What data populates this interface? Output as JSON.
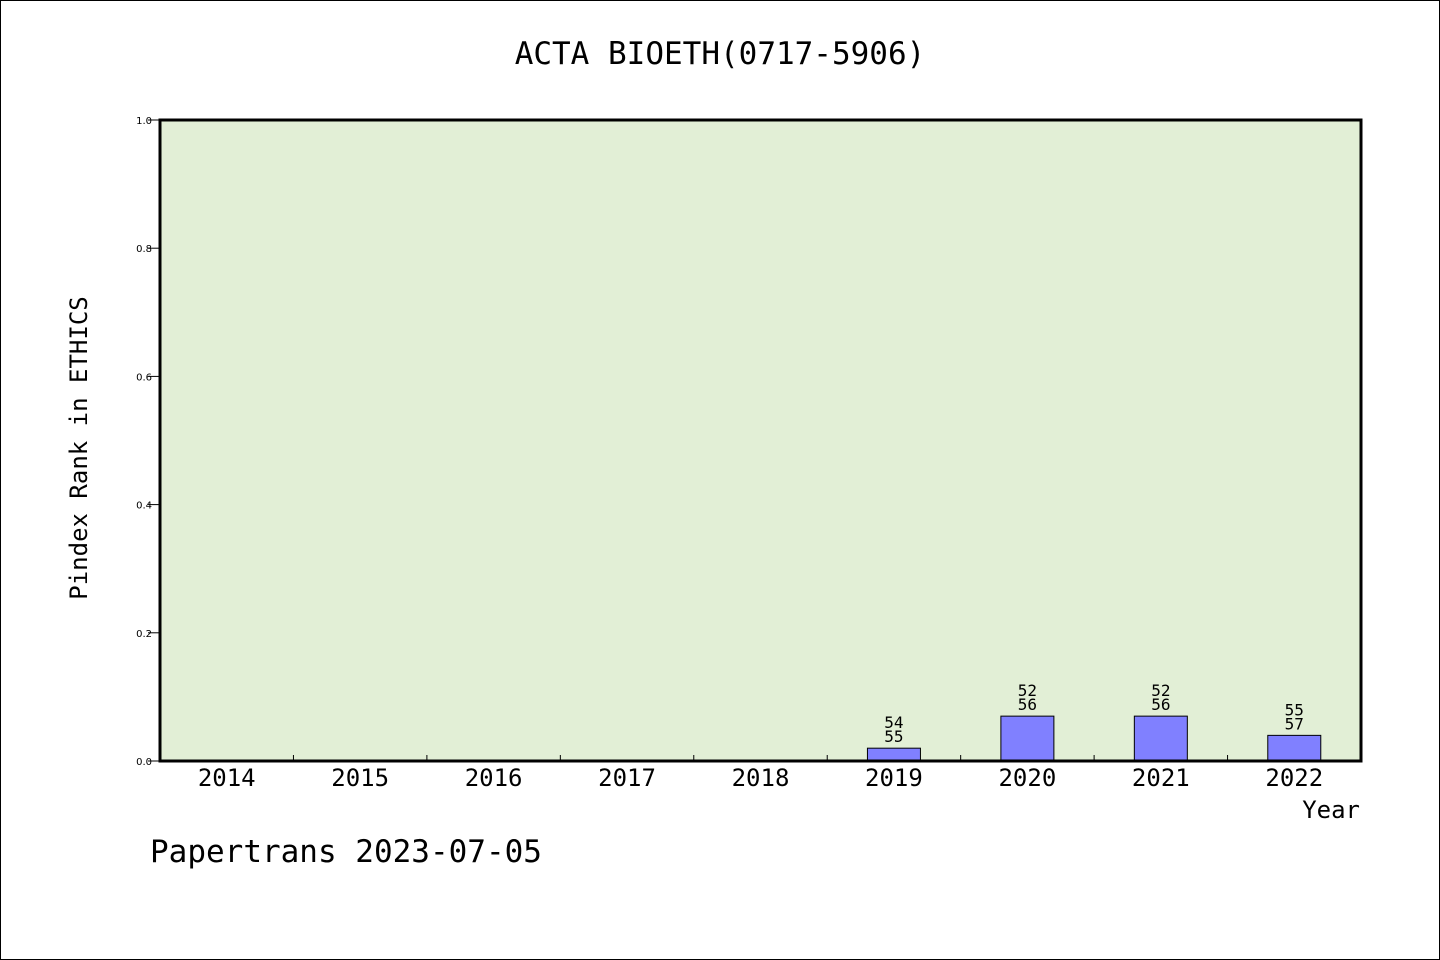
{
  "chart_data": {
    "type": "bar",
    "title": "ACTA BIOETH(0717-5906)",
    "xlabel": "Year",
    "ylabel": "Pindex Rank in ETHICS",
    "categories": [
      "2014",
      "2015",
      "2016",
      "2017",
      "2018",
      "2019",
      "2020",
      "2021",
      "2022"
    ],
    "values": [
      null,
      null,
      null,
      null,
      null,
      0.02,
      0.07,
      0.07,
      0.04
    ],
    "bar_labels": [
      [
        "",
        ""
      ],
      [
        "",
        ""
      ],
      [
        "",
        ""
      ],
      [
        "",
        ""
      ],
      [
        "",
        ""
      ],
      [
        "54",
        "55"
      ],
      [
        "52",
        "56"
      ],
      [
        "52",
        "56"
      ],
      [
        "55",
        "57"
      ]
    ],
    "ylim": [
      0,
      1.0
    ],
    "yticks": [
      0.0,
      0.2,
      0.4,
      0.6,
      0.8,
      1.0
    ],
    "ytick_labels": [
      "0.0",
      "0.2",
      "0.4",
      "0.6",
      "0.8",
      "1.0"
    ],
    "grid": false,
    "legend": "none",
    "colors": {
      "plot_background": "#e2efd6",
      "bar_fill": "#8080ff",
      "bar_stroke": "#000000",
      "axis": "#000000"
    }
  },
  "footer": {
    "text": "Papertrans 2023-07-05"
  }
}
